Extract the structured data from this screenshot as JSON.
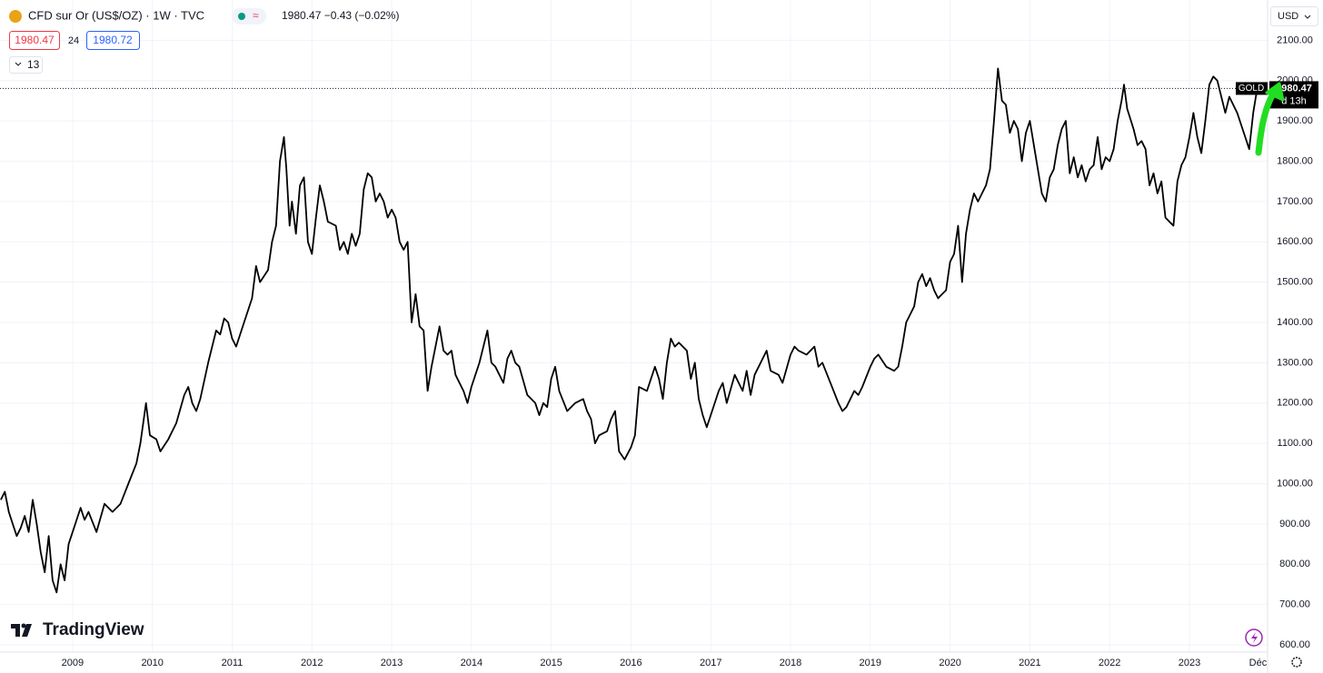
{
  "header": {
    "title": "CFD sur Or (US$/OZ) · 1W · TVC",
    "quote": "1980.47 −0.43 (−0.02%)",
    "sell": "1980.47",
    "spread": "24",
    "buy": "1980.72",
    "indicators": "13",
    "currency": "USD",
    "brand": "TradingView"
  },
  "chart_data": {
    "type": "line",
    "color": "#000000",
    "grid": true,
    "symbol": "GOLD",
    "last_price": 1980.47,
    "countdown": "d 13h",
    "xlim": [
      2008.09,
      2023.98
    ],
    "ylim": [
      582,
      2200
    ],
    "xticks": [
      2009,
      2010,
      2011,
      2012,
      2013,
      2014,
      2015,
      2016,
      2017,
      2018,
      2019,
      2020,
      2021,
      2022,
      2023,
      {
        "value": 2023.86,
        "label": "Déc"
      }
    ],
    "yticks": [
      {
        "value": 2100,
        "label": "2100.00"
      },
      {
        "value": 2000,
        "label": "2000.00"
      },
      {
        "value": 1900,
        "label": "1900.00"
      },
      {
        "value": 1800,
        "label": "1800.00"
      },
      {
        "value": 1700,
        "label": "1700.00"
      },
      {
        "value": 1600,
        "label": "1600.00"
      },
      {
        "value": 1500,
        "label": "1500.00"
      },
      {
        "value": 1400,
        "label": "1400.00"
      },
      {
        "value": 1300,
        "label": "1300.00"
      },
      {
        "value": 1200,
        "label": "1200.00"
      },
      {
        "value": 1100,
        "label": "1100.00"
      },
      {
        "value": 1000,
        "label": "1000.00"
      },
      {
        "value": 900,
        "label": "900.00"
      },
      {
        "value": 800,
        "label": "800.00"
      },
      {
        "value": 700,
        "label": "700.00"
      },
      {
        "value": 600,
        "label": "600.00"
      }
    ],
    "x": [
      2008.1,
      2008.15,
      2008.2,
      2008.25,
      2008.3,
      2008.35,
      2008.4,
      2008.45,
      2008.5,
      2008.55,
      2008.6,
      2008.65,
      2008.7,
      2008.75,
      2008.8,
      2008.85,
      2008.9,
      2008.95,
      2009.0,
      2009.1,
      2009.15,
      2009.2,
      2009.3,
      2009.4,
      2009.5,
      2009.6,
      2009.7,
      2009.8,
      2009.85,
      2009.92,
      2009.97,
      2010.05,
      2010.1,
      2010.2,
      2010.3,
      2010.4,
      2010.45,
      2010.5,
      2010.55,
      2010.6,
      2010.7,
      2010.75,
      2010.8,
      2010.85,
      2010.9,
      2010.95,
      2011.0,
      2011.05,
      2011.15,
      2011.25,
      2011.3,
      2011.35,
      2011.45,
      2011.5,
      2011.55,
      2011.6,
      2011.65,
      2011.68,
      2011.72,
      2011.75,
      2011.8,
      2011.85,
      2011.9,
      2011.95,
      2012.0,
      2012.05,
      2012.1,
      2012.15,
      2012.2,
      2012.3,
      2012.35,
      2012.4,
      2012.45,
      2012.5,
      2012.55,
      2012.6,
      2012.65,
      2012.7,
      2012.75,
      2012.8,
      2012.85,
      2012.9,
      2012.95,
      2013.0,
      2013.05,
      2013.1,
      2013.15,
      2013.2,
      2013.25,
      2013.3,
      2013.35,
      2013.4,
      2013.45,
      2013.5,
      2013.55,
      2013.6,
      2013.65,
      2013.7,
      2013.75,
      2013.8,
      2013.85,
      2013.9,
      2013.95,
      2014.0,
      2014.1,
      2014.2,
      2014.25,
      2014.3,
      2014.4,
      2014.45,
      2014.5,
      2014.55,
      2014.6,
      2014.7,
      2014.8,
      2014.85,
      2014.9,
      2014.95,
      2015.0,
      2015.05,
      2015.1,
      2015.2,
      2015.3,
      2015.4,
      2015.45,
      2015.5,
      2015.55,
      2015.6,
      2015.7,
      2015.75,
      2015.8,
      2015.85,
      2015.92,
      2016.0,
      2016.05,
      2016.1,
      2016.2,
      2016.3,
      2016.35,
      2016.4,
      2016.45,
      2016.5,
      2016.55,
      2016.6,
      2016.7,
      2016.75,
      2016.8,
      2016.85,
      2016.9,
      2016.95,
      2017.0,
      2017.1,
      2017.15,
      2017.2,
      2017.3,
      2017.4,
      2017.45,
      2017.5,
      2017.55,
      2017.6,
      2017.7,
      2017.75,
      2017.85,
      2017.9,
      2018.0,
      2018.05,
      2018.1,
      2018.2,
      2018.3,
      2018.35,
      2018.4,
      2018.5,
      2018.6,
      2018.65,
      2018.7,
      2018.8,
      2018.85,
      2018.9,
      2019.0,
      2019.05,
      2019.1,
      2019.2,
      2019.3,
      2019.35,
      2019.4,
      2019.45,
      2019.5,
      2019.55,
      2019.6,
      2019.65,
      2019.7,
      2019.75,
      2019.8,
      2019.85,
      2019.9,
      2019.95,
      2020.0,
      2020.05,
      2020.1,
      2020.15,
      2020.2,
      2020.25,
      2020.3,
      2020.35,
      2020.4,
      2020.45,
      2020.5,
      2020.55,
      2020.6,
      2020.65,
      2020.7,
      2020.75,
      2020.8,
      2020.85,
      2020.9,
      2020.95,
      2021.0,
      2021.05,
      2021.1,
      2021.15,
      2021.2,
      2021.25,
      2021.3,
      2021.35,
      2021.4,
      2021.45,
      2021.5,
      2021.55,
      2021.6,
      2021.65,
      2021.7,
      2021.75,
      2021.8,
      2021.85,
      2021.9,
      2021.95,
      2022.0,
      2022.05,
      2022.1,
      2022.15,
      2022.18,
      2022.22,
      2022.3,
      2022.35,
      2022.4,
      2022.45,
      2022.5,
      2022.55,
      2022.6,
      2022.65,
      2022.7,
      2022.75,
      2022.8,
      2022.85,
      2022.9,
      2022.95,
      2023.0,
      2023.05,
      2023.1,
      2023.15,
      2023.2,
      2023.25,
      2023.3,
      2023.35,
      2023.4,
      2023.45,
      2023.5,
      2023.55,
      2023.6,
      2023.65,
      2023.7,
      2023.75,
      2023.8,
      2023.85
    ],
    "values": [
      960,
      980,
      930,
      900,
      870,
      890,
      920,
      880,
      960,
      900,
      830,
      780,
      870,
      760,
      730,
      800,
      760,
      850,
      880,
      940,
      910,
      930,
      880,
      950,
      930,
      950,
      1000,
      1050,
      1100,
      1200,
      1120,
      1110,
      1080,
      1110,
      1150,
      1220,
      1240,
      1200,
      1180,
      1210,
      1300,
      1340,
      1380,
      1370,
      1410,
      1400,
      1360,
      1340,
      1400,
      1460,
      1540,
      1500,
      1530,
      1600,
      1640,
      1800,
      1860,
      1780,
      1640,
      1700,
      1620,
      1740,
      1760,
      1600,
      1570,
      1660,
      1740,
      1700,
      1650,
      1640,
      1580,
      1600,
      1570,
      1620,
      1590,
      1620,
      1730,
      1770,
      1760,
      1700,
      1720,
      1700,
      1660,
      1680,
      1660,
      1600,
      1580,
      1600,
      1400,
      1470,
      1390,
      1380,
      1230,
      1290,
      1340,
      1390,
      1330,
      1320,
      1330,
      1270,
      1250,
      1230,
      1200,
      1240,
      1300,
      1380,
      1300,
      1290,
      1250,
      1310,
      1330,
      1300,
      1290,
      1220,
      1200,
      1170,
      1200,
      1190,
      1260,
      1290,
      1230,
      1180,
      1200,
      1210,
      1180,
      1160,
      1100,
      1120,
      1130,
      1160,
      1180,
      1080,
      1060,
      1090,
      1120,
      1240,
      1230,
      1290,
      1260,
      1210,
      1300,
      1360,
      1340,
      1350,
      1330,
      1260,
      1300,
      1210,
      1170,
      1140,
      1170,
      1230,
      1250,
      1200,
      1270,
      1230,
      1280,
      1220,
      1270,
      1290,
      1330,
      1280,
      1270,
      1250,
      1320,
      1340,
      1330,
      1320,
      1340,
      1290,
      1300,
      1250,
      1200,
      1180,
      1190,
      1230,
      1220,
      1240,
      1290,
      1310,
      1320,
      1290,
      1280,
      1290,
      1340,
      1400,
      1420,
      1440,
      1500,
      1520,
      1490,
      1510,
      1480,
      1460,
      1470,
      1480,
      1550,
      1570,
      1640,
      1500,
      1620,
      1680,
      1720,
      1700,
      1720,
      1740,
      1780,
      1900,
      2030,
      1950,
      1940,
      1870,
      1900,
      1880,
      1800,
      1870,
      1900,
      1840,
      1780,
      1720,
      1700,
      1760,
      1780,
      1840,
      1880,
      1900,
      1770,
      1810,
      1760,
      1790,
      1750,
      1780,
      1790,
      1860,
      1780,
      1810,
      1800,
      1830,
      1900,
      1950,
      1990,
      1930,
      1880,
      1840,
      1850,
      1830,
      1740,
      1770,
      1720,
      1750,
      1660,
      1650,
      1640,
      1750,
      1790,
      1810,
      1860,
      1920,
      1860,
      1820,
      1900,
      1990,
      2010,
      2000,
      1960,
      1920,
      1960,
      1940,
      1920,
      1890,
      1860,
      1830,
      1920,
      1980.47
    ]
  }
}
